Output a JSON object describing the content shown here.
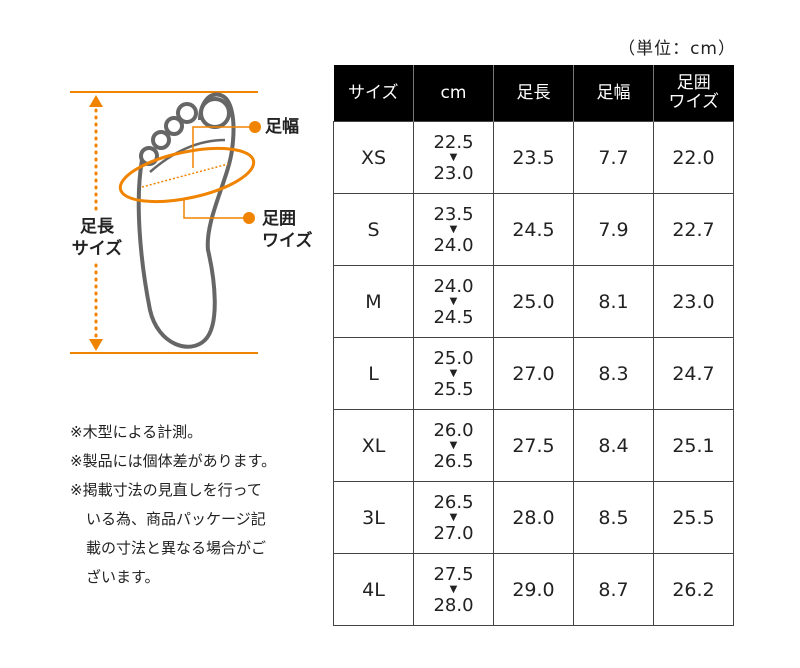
{
  "unit_label": "（単位：cm）",
  "diagram": {
    "foot_length_label": [
      "足長",
      "サイズ"
    ],
    "foot_width_label": "足幅",
    "foot_girth_label": [
      "足囲",
      "ワイズ"
    ],
    "accent_color": "#f08300",
    "outline_color": "#666666"
  },
  "table": {
    "headers": [
      "サイズ",
      "cm",
      "足長",
      "足幅",
      "足囲\nワイズ"
    ],
    "header_girth": [
      "足囲",
      "ワイズ"
    ],
    "rows": [
      {
        "size": "XS",
        "cm_from": "22.5",
        "cm_to": "23.0",
        "length": "23.5",
        "width": "7.7",
        "girth": "22.0"
      },
      {
        "size": "S",
        "cm_from": "23.5",
        "cm_to": "24.0",
        "length": "24.5",
        "width": "7.9",
        "girth": "22.7"
      },
      {
        "size": "M",
        "cm_from": "24.0",
        "cm_to": "24.5",
        "length": "25.0",
        "width": "8.1",
        "girth": "23.0"
      },
      {
        "size": "L",
        "cm_from": "25.0",
        "cm_to": "25.5",
        "length": "27.0",
        "width": "8.3",
        "girth": "24.7"
      },
      {
        "size": "XL",
        "cm_from": "26.0",
        "cm_to": "26.5",
        "length": "27.5",
        "width": "8.4",
        "girth": "25.1"
      },
      {
        "size": "3L",
        "cm_from": "26.5",
        "cm_to": "27.0",
        "length": "28.0",
        "width": "8.5",
        "girth": "25.5"
      },
      {
        "size": "4L",
        "cm_from": "27.5",
        "cm_to": "28.0",
        "length": "29.0",
        "width": "8.7",
        "girth": "26.2"
      }
    ],
    "range_icon": "triangle-down-icon"
  },
  "notes": [
    "※木型による計測。",
    "※製品には個体差があります。",
    "※掲載寸法の見直しを行って",
    "いる為、商品パッケージ記",
    "載の寸法と異なる場合がご",
    "ざいます。"
  ]
}
